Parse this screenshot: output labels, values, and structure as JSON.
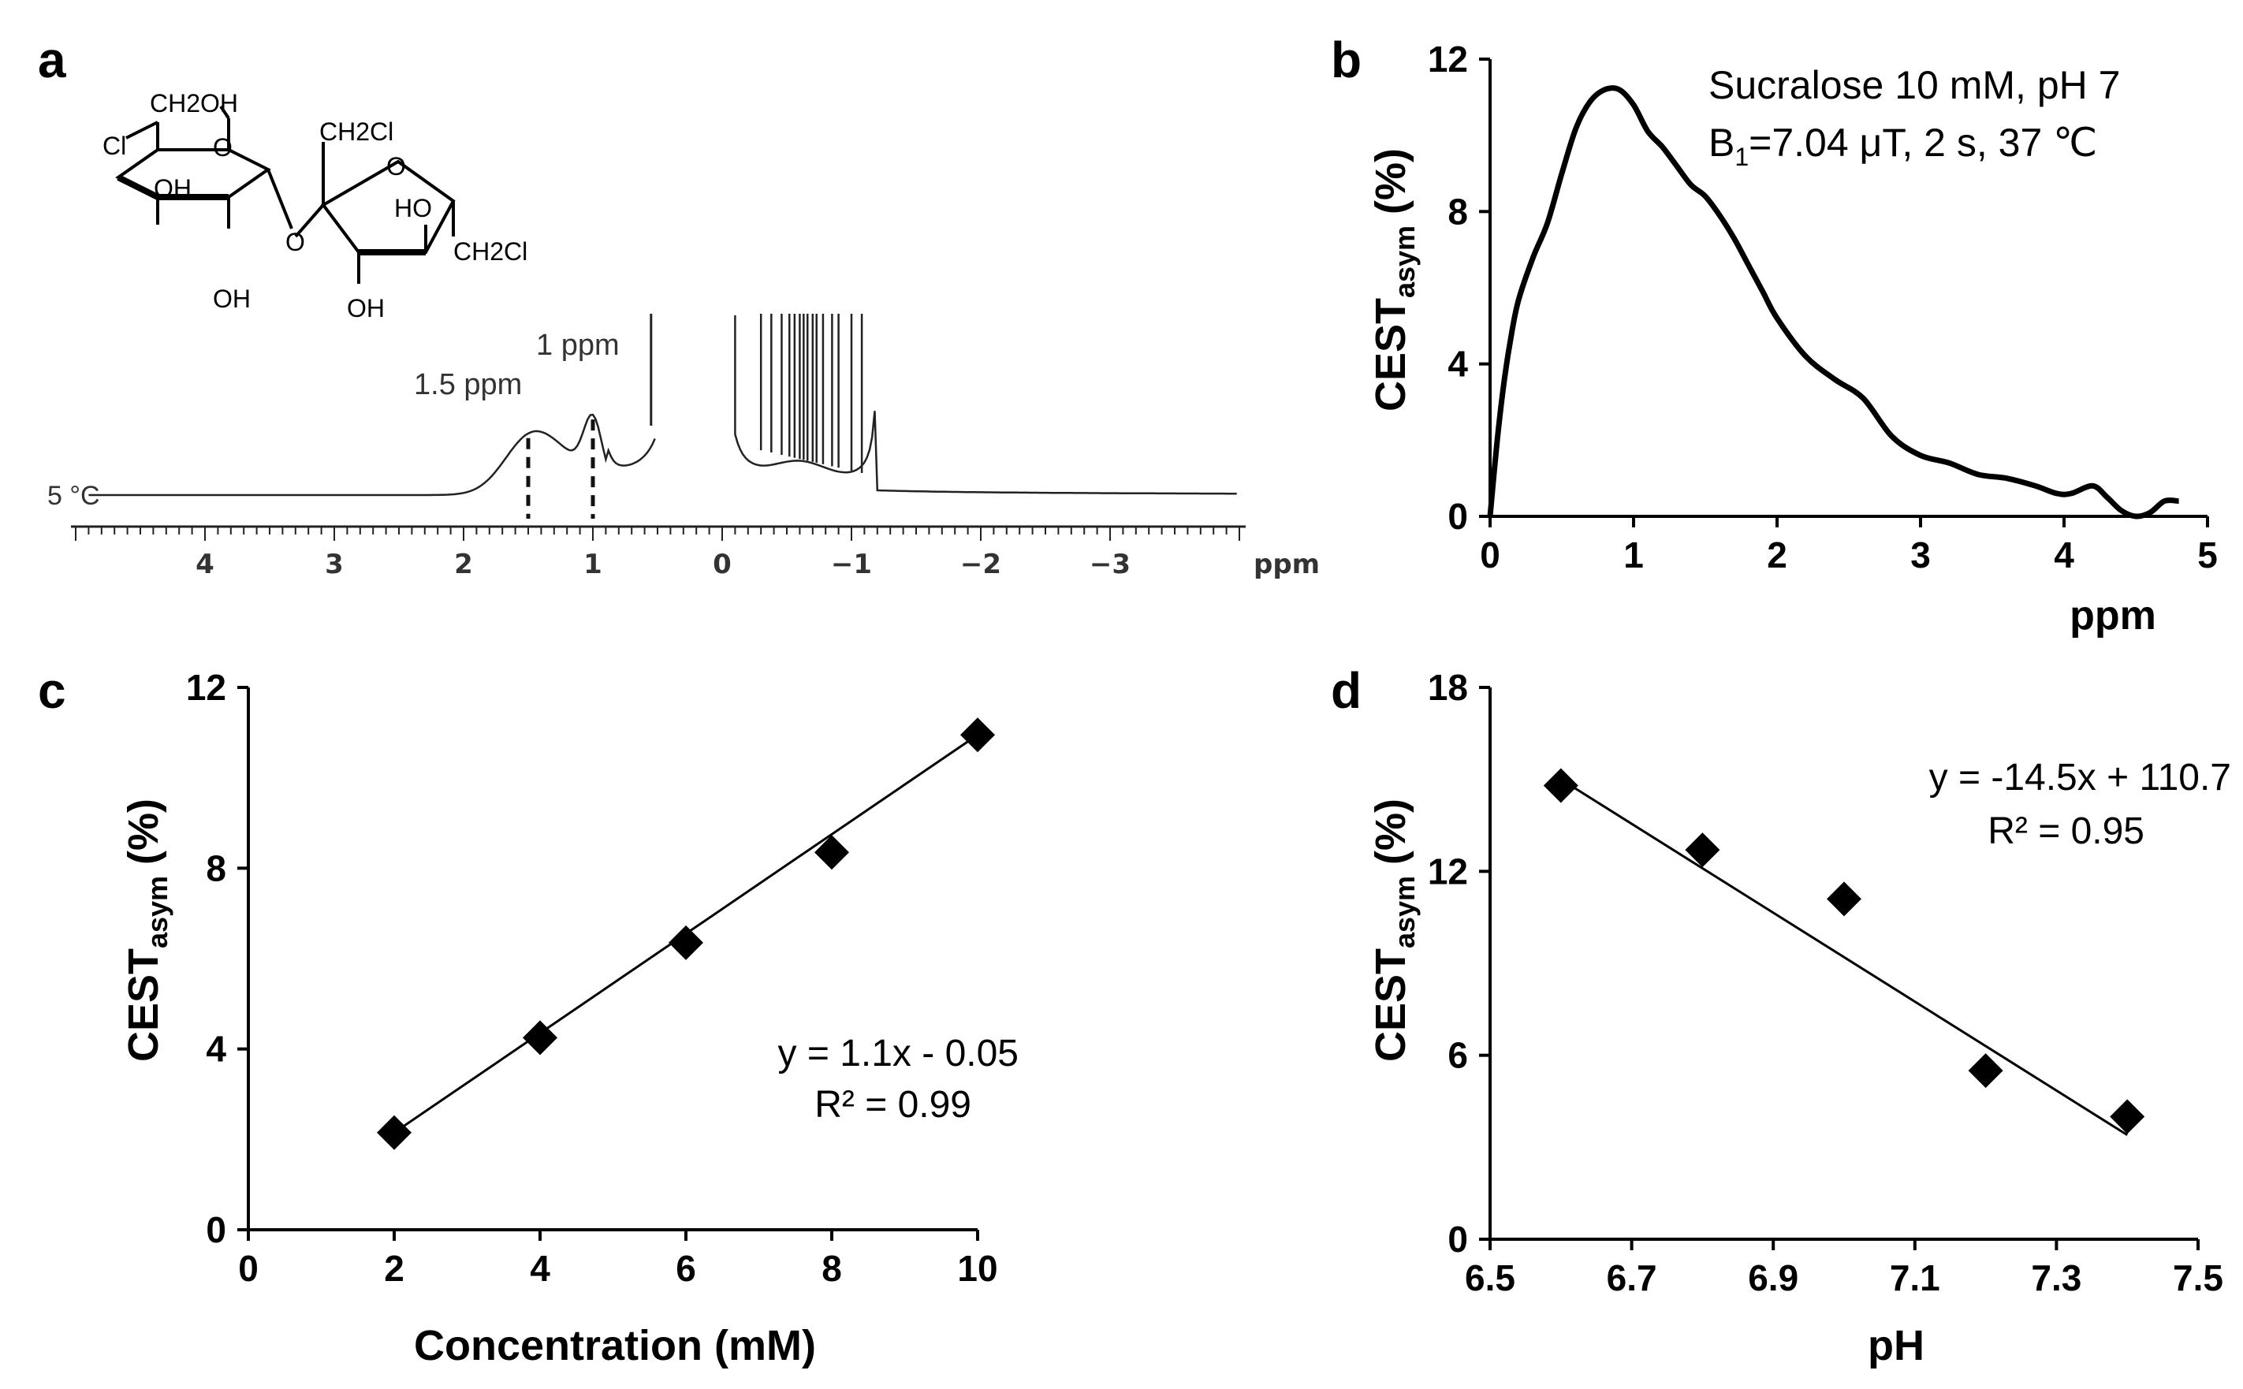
{
  "panels": {
    "a": {
      "label": "a",
      "nmr": {
        "ppm_range": [
          -4,
          5
        ],
        "temperature_label": "5 °C",
        "x_ticks": [
          "4",
          "3",
          "2",
          "1",
          "0",
          "−1",
          "−2",
          "−3"
        ],
        "x_unit": "ppm",
        "peaks": [
          {
            "ppm": 1.5,
            "label": "1.5 ppm"
          },
          {
            "ppm": 1.0,
            "label": "1 ppm"
          }
        ]
      },
      "structure": {
        "name": "sucralose",
        "labels": [
          "CH2OH",
          "Cl",
          "OH",
          "O",
          "OH",
          "O",
          "CH2Cl",
          "O",
          "HO",
          "CH2Cl",
          "OH"
        ]
      }
    },
    "b": {
      "label": "b",
      "annotation_line1": "Sucralose 10 mM, pH 7",
      "annotation_line2_prefix": "B",
      "annotation_line2_sub": "1",
      "annotation_line2_suffix": "=7.04 μT, 2 s, 37 ℃",
      "ylabel_main": "CEST",
      "ylabel_sub": "asym",
      "ylabel_unit": "(%)"
    },
    "c": {
      "label": "c",
      "equation": "y = 1.1x - 0.05",
      "r2": "R² = 0.99",
      "ylabel_main": "CEST",
      "ylabel_sub": "asym",
      "ylabel_unit": "(%)"
    },
    "d": {
      "label": "d",
      "equation": "y = -14.5x + 110.7",
      "r2": "R² = 0.95",
      "ylabel_main": "CEST",
      "ylabel_sub": "asym",
      "ylabel_unit": "(%)"
    }
  },
  "chart_data": [
    {
      "panel": "b",
      "type": "line",
      "title": "",
      "xlabel": "ppm",
      "ylabel": "CEST asym (%)",
      "xlim": [
        0,
        5
      ],
      "ylim": [
        0,
        12
      ],
      "x_ticks": [
        0,
        1,
        2,
        3,
        4,
        5
      ],
      "y_ticks": [
        0,
        4,
        8,
        12
      ],
      "series": [
        {
          "name": "Sucralose 10 mM, pH 7",
          "x": [
            0,
            0.05,
            0.1,
            0.15,
            0.2,
            0.3,
            0.4,
            0.5,
            0.6,
            0.7,
            0.8,
            0.9,
            1.0,
            1.1,
            1.2,
            1.3,
            1.4,
            1.5,
            1.6,
            1.7,
            1.8,
            1.9,
            2.0,
            2.2,
            2.4,
            2.6,
            2.8,
            3.0,
            3.2,
            3.4,
            3.6,
            3.8,
            3.95,
            4.05,
            4.2,
            4.3,
            4.4,
            4.5,
            4.6,
            4.7,
            4.8
          ],
          "y": [
            0,
            2.0,
            3.6,
            4.8,
            5.7,
            6.8,
            7.7,
            9.0,
            10.2,
            10.9,
            11.2,
            11.2,
            10.8,
            10.1,
            9.7,
            9.2,
            8.7,
            8.4,
            7.9,
            7.3,
            6.6,
            5.9,
            5.2,
            4.2,
            3.6,
            3.1,
            2.1,
            1.6,
            1.4,
            1.1,
            1.0,
            0.8,
            0.6,
            0.6,
            0.8,
            0.5,
            0.15,
            0.0,
            0.1,
            0.4,
            0.4
          ]
        }
      ]
    },
    {
      "panel": "c",
      "type": "scatter",
      "title": "",
      "xlabel": "Concentration (mM)",
      "ylabel": "CEST asym (%)",
      "xlim": [
        0,
        10
      ],
      "ylim": [
        0,
        12
      ],
      "x_ticks": [
        0,
        2,
        4,
        6,
        8,
        10
      ],
      "y_ticks": [
        0,
        4,
        8,
        12
      ],
      "series": [
        {
          "name": "data",
          "x": [
            2,
            4,
            6,
            8,
            10
          ],
          "y": [
            2.15,
            4.25,
            6.35,
            8.35,
            10.95
          ]
        }
      ],
      "fit": {
        "slope": 1.1,
        "intercept": -0.05,
        "x_range": [
          2,
          10
        ],
        "equation": "y = 1.1x - 0.05",
        "r2": 0.99
      }
    },
    {
      "panel": "d",
      "type": "scatter",
      "title": "",
      "xlabel": "pH",
      "ylabel": "CEST asym (%)",
      "xlim": [
        6.5,
        7.5
      ],
      "ylim": [
        0,
        18
      ],
      "x_ticks": [
        6.5,
        6.7,
        6.9,
        7.1,
        7.3,
        7.5
      ],
      "y_ticks": [
        0,
        6,
        12,
        18
      ],
      "series": [
        {
          "name": "data",
          "x": [
            6.6,
            6.8,
            7.0,
            7.2,
            7.4
          ],
          "y": [
            14.8,
            12.7,
            11.1,
            5.5,
            4.0
          ]
        }
      ],
      "fit": {
        "slope": -14.5,
        "intercept": 110.7,
        "x_range": [
          6.6,
          7.4
        ],
        "equation": "y = -14.5x + 110.7",
        "r2": 0.95
      }
    }
  ]
}
